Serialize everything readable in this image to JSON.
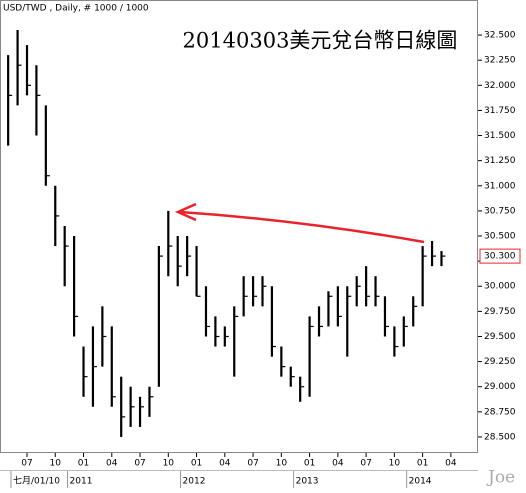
{
  "chart_data": {
    "type": "ohlc",
    "title": "20140303美元兌台幣日線圖",
    "subtitle": "USD/TWD , Daily, # 1000 / 1000",
    "watermark": "Joe",
    "color": "#000000",
    "annotation_color": "#e8242a",
    "x": [
      "2010-05",
      "2010-06",
      "2010-07",
      "2010-08",
      "2010-09",
      "2010-10",
      "2010-11",
      "2010-12",
      "2011-01",
      "2011-02",
      "2011-03",
      "2011-04",
      "2011-05",
      "2011-06",
      "2011-07",
      "2011-08",
      "2011-09",
      "2011-10",
      "2011-11",
      "2011-12",
      "2012-01",
      "2012-02",
      "2012-03",
      "2012-04",
      "2012-05",
      "2012-06",
      "2012-07",
      "2012-08",
      "2012-09",
      "2012-10",
      "2012-11",
      "2012-12",
      "2013-01",
      "2013-02",
      "2013-03",
      "2013-04",
      "2013-05",
      "2013-06",
      "2013-07",
      "2013-08",
      "2013-09",
      "2013-10",
      "2013-11",
      "2013-12",
      "2014-01",
      "2014-02",
      "2014-03"
    ],
    "high": [
      32.3,
      32.55,
      32.4,
      32.2,
      31.8,
      31.0,
      30.6,
      30.5,
      29.4,
      29.6,
      29.8,
      29.6,
      29.1,
      29.0,
      28.9,
      29.0,
      30.4,
      30.75,
      30.5,
      30.5,
      30.4,
      30.0,
      29.7,
      29.6,
      29.8,
      30.1,
      30.1,
      30.1,
      30.0,
      29.4,
      29.2,
      29.1,
      29.7,
      29.8,
      29.95,
      30.0,
      30.0,
      30.1,
      30.2,
      30.1,
      29.9,
      29.6,
      29.7,
      29.9,
      30.4,
      30.45,
      30.35
    ],
    "low": [
      31.4,
      31.8,
      31.9,
      31.5,
      31.0,
      30.4,
      30.0,
      29.5,
      28.9,
      28.8,
      29.2,
      28.8,
      28.5,
      28.6,
      28.6,
      28.7,
      29.0,
      30.1,
      30.0,
      30.1,
      29.9,
      29.5,
      29.4,
      29.4,
      29.1,
      29.7,
      29.8,
      29.8,
      29.3,
      29.1,
      29.0,
      28.85,
      28.9,
      29.5,
      29.6,
      29.6,
      29.3,
      29.8,
      29.8,
      29.8,
      29.5,
      29.3,
      29.4,
      29.6,
      29.8,
      30.2,
      30.2
    ],
    "close": [
      31.9,
      32.2,
      32.0,
      31.9,
      31.1,
      30.7,
      30.4,
      29.7,
      29.1,
      29.2,
      29.5,
      28.9,
      28.7,
      28.8,
      28.8,
      28.9,
      30.3,
      30.4,
      30.2,
      30.3,
      29.9,
      29.6,
      29.5,
      29.5,
      29.7,
      29.9,
      29.9,
      30.0,
      29.4,
      29.2,
      29.1,
      29.0,
      29.6,
      29.6,
      29.9,
      29.7,
      29.9,
      30.0,
      29.9,
      29.9,
      29.6,
      29.4,
      29.6,
      29.8,
      30.3,
      30.3,
      30.3
    ],
    "last_price": {
      "value": 30.3,
      "label": "30.300"
    },
    "ylim": [
      28.4,
      32.65
    ],
    "yticks": [
      {
        "value": 28.5,
        "label": "28.500"
      },
      {
        "value": 28.75,
        "label": "28.750"
      },
      {
        "value": 29,
        "label": "29.000"
      },
      {
        "value": 29.25,
        "label": "29.250"
      },
      {
        "value": 29.5,
        "label": "29.500"
      },
      {
        "value": 29.75,
        "label": "29.750"
      },
      {
        "value": 30,
        "label": "30.000"
      },
      {
        "value": 30.25,
        "label": "30.250"
      },
      {
        "value": 30.5,
        "label": "30.500"
      },
      {
        "value": 30.75,
        "label": "30.750"
      },
      {
        "value": 31,
        "label": "31.000"
      },
      {
        "value": 31.25,
        "label": "31.250"
      },
      {
        "value": 31.5,
        "label": "31.500"
      },
      {
        "value": 31.75,
        "label": "31.750"
      },
      {
        "value": 32,
        "label": "32.000"
      },
      {
        "value": 32.25,
        "label": "32.250"
      },
      {
        "value": 32.5,
        "label": "32.500"
      }
    ],
    "xticks": [
      {
        "value": "2010-07",
        "label": "07"
      },
      {
        "value": "2010-10",
        "label": "10"
      },
      {
        "value": "2011-01",
        "label": "01"
      },
      {
        "value": "2011-04",
        "label": "04"
      },
      {
        "value": "2011-07",
        "label": "07"
      },
      {
        "value": "2011-10",
        "label": "10"
      },
      {
        "value": "2012-01",
        "label": "01"
      },
      {
        "value": "2012-04",
        "label": "04"
      },
      {
        "value": "2012-07",
        "label": "07"
      },
      {
        "value": "2012-10",
        "label": "10"
      },
      {
        "value": "2013-01",
        "label": "01"
      },
      {
        "value": "2013-04",
        "label": "04"
      },
      {
        "value": "2013-07",
        "label": "07"
      },
      {
        "value": "2013-10",
        "label": "10"
      },
      {
        "value": "2014-01",
        "label": "01"
      },
      {
        "value": "2014-04",
        "label": "04"
      }
    ],
    "year_labels": [
      {
        "value": "2010-07",
        "label": "七月/01/10"
      },
      {
        "value": "2011-01",
        "label": "2011"
      },
      {
        "value": "2012-01",
        "label": "2012"
      },
      {
        "value": "2013-01",
        "label": "2013"
      },
      {
        "value": "2014-01",
        "label": "2014"
      }
    ]
  }
}
